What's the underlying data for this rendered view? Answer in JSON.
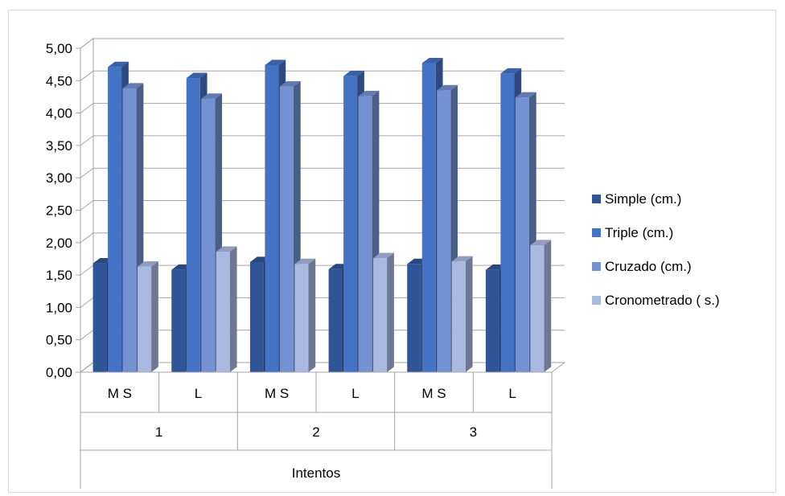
{
  "chart_data": {
    "type": "bar",
    "subtype": "3d-clustered-column",
    "categories_level1": [
      "M S",
      "L",
      "M S",
      "L",
      "M S",
      "L"
    ],
    "categories_level2": [
      "1",
      "2",
      "3"
    ],
    "xlabel": "Intentos",
    "ylabel": "",
    "ylim": [
      0,
      5
    ],
    "yticks": [
      "0,00",
      "0,50",
      "1,00",
      "1,50",
      "2,00",
      "2,50",
      "3,00",
      "3,50",
      "4,00",
      "4,50",
      "5,00"
    ],
    "grid": true,
    "legend_position": "right",
    "series": [
      {
        "name": "Simple (cm.)",
        "color": "#2F5597",
        "values": [
          1.68,
          1.58,
          1.7,
          1.59,
          1.67,
          1.58
        ]
      },
      {
        "name": "Triple (cm.)",
        "color": "#4472C4",
        "values": [
          4.71,
          4.54,
          4.74,
          4.57,
          4.77,
          4.61
        ]
      },
      {
        "name": "Cruzado (cm.)",
        "color": "#7491D1",
        "values": [
          4.38,
          4.22,
          4.41,
          4.26,
          4.35,
          4.24
        ]
      },
      {
        "name": "Cronometrado ( s.)",
        "color": "#A9B9E0",
        "values": [
          1.63,
          1.86,
          1.67,
          1.76,
          1.71,
          1.96
        ]
      }
    ]
  }
}
